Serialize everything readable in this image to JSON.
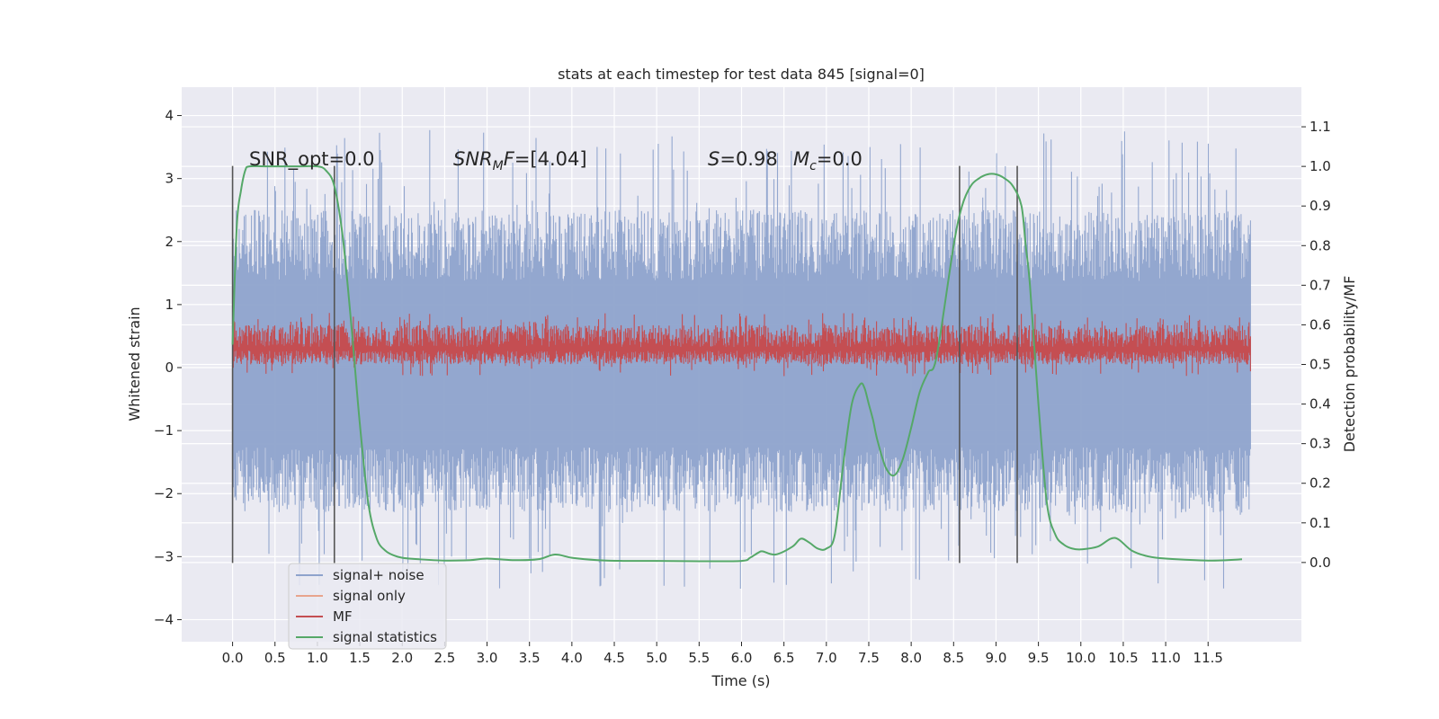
{
  "chart_data": {
    "type": "line",
    "title": "stats at each timestep for test data 845 [signal=0]",
    "xlabel": "Time (s)",
    "ylabel": "Whitened strain",
    "ylabel_right": "Detection probability/MF",
    "xlim": [
      -0.6,
      12.6
    ],
    "ylim": [
      -4.35,
      4.45
    ],
    "ylim_right": [
      -0.2,
      1.2
    ],
    "x_ticks": [
      "0.0",
      "0.5",
      "1.0",
      "1.5",
      "2.0",
      "2.5",
      "3.0",
      "3.5",
      "4.0",
      "4.5",
      "5.0",
      "5.5",
      "6.0",
      "6.5",
      "7.0",
      "7.5",
      "8.0",
      "8.5",
      "9.0",
      "9.5",
      "10.0",
      "10.5",
      "11.0",
      "11.5"
    ],
    "y_ticks": [
      "4",
      "3",
      "2",
      "1",
      "0",
      "−1",
      "−2",
      "−3",
      "−4"
    ],
    "y_ticks_right": [
      "1.1",
      "1.0",
      "0.9",
      "0.8",
      "0.7",
      "0.6",
      "0.5",
      "0.4",
      "0.3",
      "0.2",
      "0.1",
      "0.0"
    ],
    "annotations": {
      "snr_opt": "SNR_opt=0.0",
      "snr_mf_name": "SNR",
      "snr_mf_sub": "M",
      "snr_mf_tail": "F",
      "snr_mf_value": "=[4.04]",
      "s_symbol": "S",
      "s_value": "=0.98",
      "mc_symbol": "M",
      "mc_sub": "c",
      "mc_value": "=0.0"
    },
    "legend_position": "lower-left",
    "series": [
      {
        "name": "signal+ noise",
        "color": "#8ea3cc",
        "axis": "left",
        "kind": "noise",
        "x_range": [
          0.0,
          12.0
        ],
        "envelope_typical": [
          -2.3,
          2.5
        ],
        "extremes": [
          -3.85,
          4.1
        ]
      },
      {
        "name": "signal only",
        "color": "#e8a48d",
        "axis": "left",
        "x": [],
        "y": []
      },
      {
        "name": "MF",
        "color": "#c44e52",
        "axis": "right",
        "kind": "noise",
        "x_range": [
          0.0,
          12.0
        ],
        "band": [
          0.5,
          0.6
        ],
        "extremes": [
          0.47,
          0.63
        ]
      },
      {
        "name": "signal statistics",
        "color": "#55a868",
        "axis": "right",
        "x": [
          0.0,
          0.05,
          0.1,
          0.15,
          0.2,
          0.4,
          0.8,
          1.0,
          1.1,
          1.2,
          1.3,
          1.4,
          1.5,
          1.6,
          1.7,
          1.8,
          1.9,
          2.0,
          2.2,
          2.5,
          2.8,
          3.0,
          3.3,
          3.6,
          3.8,
          4.0,
          4.3,
          4.6,
          5.0,
          5.5,
          6.0,
          6.1,
          6.2,
          6.25,
          6.4,
          6.6,
          6.7,
          6.8,
          6.9,
          7.0,
          7.1,
          7.2,
          7.3,
          7.4,
          7.45,
          7.5,
          7.55,
          7.6,
          7.7,
          7.8,
          7.9,
          8.0,
          8.1,
          8.2,
          8.3,
          8.5,
          8.6,
          8.7,
          8.8,
          8.9,
          9.0,
          9.1,
          9.2,
          9.3,
          9.35,
          9.4,
          9.5,
          9.6,
          9.7,
          9.8,
          9.9,
          10.0,
          10.2,
          10.4,
          10.6,
          10.8,
          11.0,
          11.5,
          11.9
        ],
        "y": [
          0.55,
          0.85,
          0.94,
          0.99,
          1.0,
          1.0,
          1.0,
          1.0,
          0.99,
          0.95,
          0.82,
          0.6,
          0.35,
          0.15,
          0.06,
          0.03,
          0.018,
          0.012,
          0.008,
          0.005,
          0.006,
          0.01,
          0.006,
          0.008,
          0.02,
          0.012,
          0.006,
          0.004,
          0.004,
          0.003,
          0.004,
          0.012,
          0.025,
          0.028,
          0.02,
          0.04,
          0.06,
          0.05,
          0.035,
          0.035,
          0.07,
          0.25,
          0.4,
          0.45,
          0.44,
          0.4,
          0.36,
          0.31,
          0.24,
          0.22,
          0.26,
          0.34,
          0.43,
          0.48,
          0.52,
          0.8,
          0.9,
          0.95,
          0.97,
          0.98,
          0.98,
          0.97,
          0.95,
          0.9,
          0.8,
          0.7,
          0.4,
          0.15,
          0.07,
          0.045,
          0.035,
          0.033,
          0.04,
          0.062,
          0.03,
          0.015,
          0.01,
          0.005,
          0.008
        ]
      }
    ],
    "vertical_markers_x": [
      0.0,
      1.2,
      8.57,
      9.25
    ]
  }
}
